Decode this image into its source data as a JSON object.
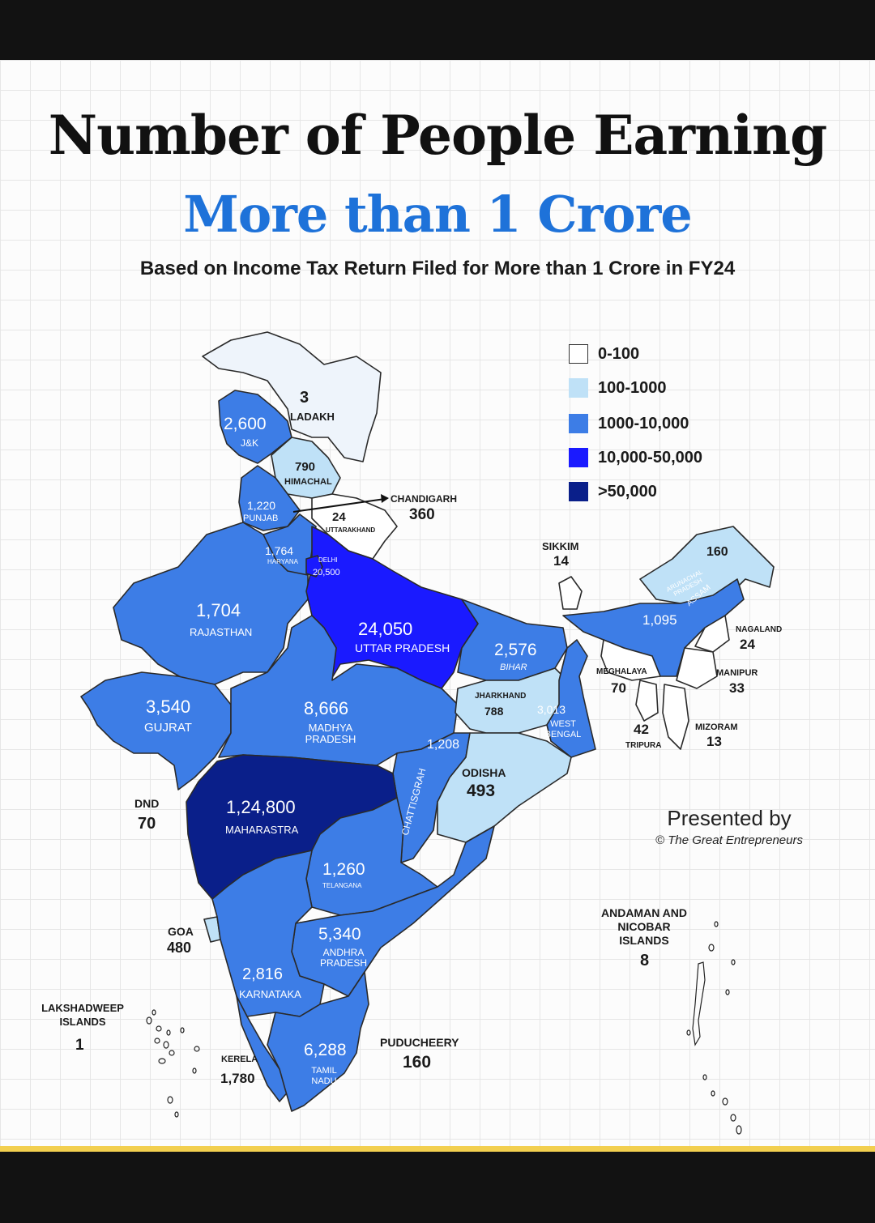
{
  "title_line1": "Number of People Earning",
  "title_line2": "More than 1 Crore",
  "subtitle": "Based on Income Tax Return Filed for More than 1 Crore in FY24",
  "legend": [
    {
      "label": "0-100",
      "color": "#ffffff"
    },
    {
      "label": "100-1000",
      "color": "#bfe1f7"
    },
    {
      "label": "1000-10,000",
      "color": "#3d7de6"
    },
    {
      "label": "10,000-50,000",
      "color": "#1a1aff"
    },
    {
      "label": ">50,000",
      "color": "#0a1f8a"
    }
  ],
  "regions": {
    "ladakh": {
      "name": "LADAKH",
      "value": "3"
    },
    "jk": {
      "name": "J&K",
      "value": "2,600"
    },
    "himachal": {
      "name": "HIMACHAL",
      "value": "790"
    },
    "punjab": {
      "name": "PUNJAB",
      "value": "1,220"
    },
    "chandigarh": {
      "name": "CHANDIGARH",
      "value": "360"
    },
    "uttarakhand": {
      "name": "UTTARAKHAND",
      "value": "24"
    },
    "haryana": {
      "name": "HARYANA",
      "value": "1,764"
    },
    "delhi": {
      "name": "DELHI",
      "value": "20,500"
    },
    "rajasthan": {
      "name": "RAJASTHAN",
      "value": "1,704"
    },
    "up": {
      "name": "UTTAR PRADESH",
      "value": "24,050"
    },
    "bihar": {
      "name": "BIHAR",
      "value": "2,576"
    },
    "sikkim": {
      "name": "SIKKIM",
      "value": "14"
    },
    "arunachal": {
      "name": "ARUNACHAL PRADESH",
      "value": "160"
    },
    "assam": {
      "name": "ASSAM",
      "value": "1,095"
    },
    "nagaland": {
      "name": "NAGALAND",
      "value": "24"
    },
    "meghalaya": {
      "name": "MEGHALAYA",
      "value": "70"
    },
    "manipur": {
      "name": "MANIPUR",
      "value": "33"
    },
    "tripura": {
      "name": "TRIPURA",
      "value": "42"
    },
    "mizoram": {
      "name": "MIZORAM",
      "value": "13"
    },
    "gujarat": {
      "name": "GUJRAT",
      "value": "3,540"
    },
    "mp": {
      "name": "MADHYA PRADESH",
      "value": "8,666"
    },
    "jharkhand": {
      "name": "JHARKHAND",
      "value": "788"
    },
    "westbengal": {
      "name": "WEST BENGAL",
      "value": "3,013"
    },
    "chhattisgarh": {
      "name": "CHATTISGRAH",
      "value": "1,208"
    },
    "odisha": {
      "name": "ODISHA",
      "value": "493"
    },
    "dnd": {
      "name": "DND",
      "value": "70"
    },
    "maharashtra": {
      "name": "MAHARASTRA",
      "value": "1,24,800"
    },
    "telangana": {
      "name": "TELANGANA",
      "value": "1,260"
    },
    "goa": {
      "name": "GOA",
      "value": "480"
    },
    "andhra": {
      "name": "ANDHRA PRADESH",
      "value": "5,340"
    },
    "karnataka": {
      "name": "KARNATAKA",
      "value": "2,816"
    },
    "lakshadweep": {
      "name": "LAKSHADWEEP ISLANDS",
      "value": "1"
    },
    "kerala": {
      "name": "KERELA",
      "value": "1,780"
    },
    "tamilnadu": {
      "name": "TAMIL NADU",
      "value": "6,288"
    },
    "puducherry": {
      "name": "PUDUCHEERY",
      "value": "160"
    },
    "andaman": {
      "name": "ANDAMAN AND NICOBAR ISLANDS",
      "value": "8"
    }
  },
  "presented_by": "Presented by",
  "credit": "© The Great Entrepreneurs"
}
